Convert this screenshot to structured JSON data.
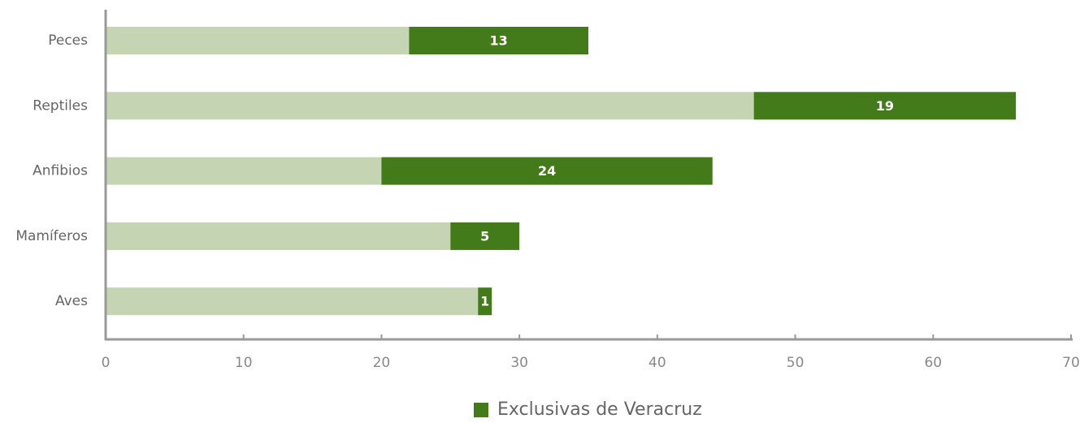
{
  "chart_data": {
    "type": "stacked_barh",
    "categories": [
      "Peces",
      "Reptiles",
      "Anfibios",
      "Mamíferos",
      "Aves"
    ],
    "series": [
      {
        "color": "#c5d4b3",
        "values": [
          22,
          47,
          20,
          25,
          27
        ]
      },
      {
        "name": "Exclusivas de Veracruz",
        "color": "#437a1a",
        "values": [
          13,
          19,
          24,
          5,
          1
        ],
        "show_labels": true
      }
    ],
    "xlim": [
      0,
      70
    ],
    "xticks": [
      0,
      10,
      20,
      30,
      40,
      50,
      60,
      70
    ],
    "legend": "bottom"
  }
}
